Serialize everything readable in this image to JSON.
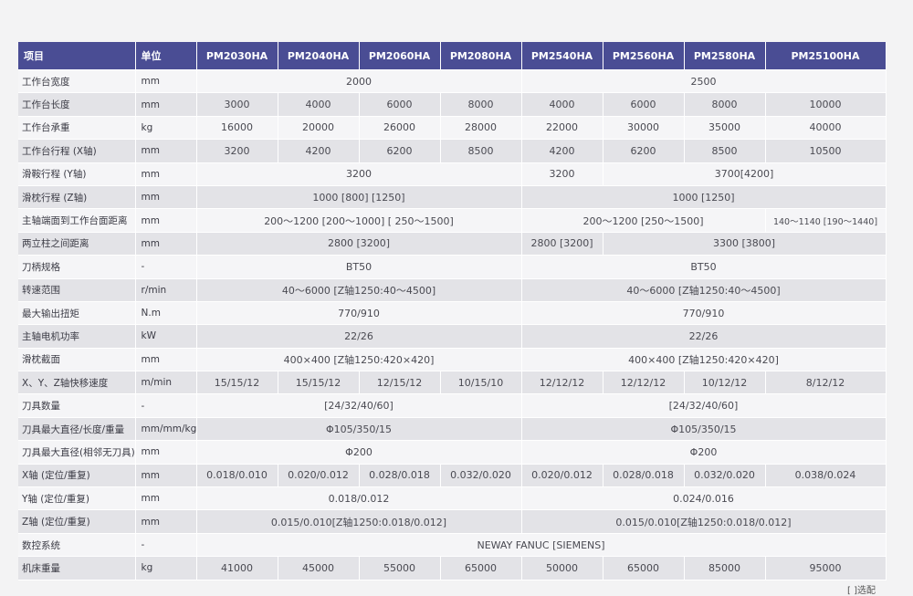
{
  "header": {
    "item": "项目",
    "unit": "单位",
    "models": [
      "PM2030HA",
      "PM2040HA",
      "PM2060HA",
      "PM2080HA",
      "PM2540HA",
      "PM2560HA",
      "PM2580HA",
      "PM25100HA"
    ]
  },
  "rows": [
    {
      "label": "工作台宽度",
      "unit": "mm",
      "cells": [
        {
          "v": "2000",
          "s": 4
        },
        {
          "v": "2500",
          "s": 4
        }
      ]
    },
    {
      "label": "工作台长度",
      "unit": "mm",
      "cells": [
        {
          "v": "3000"
        },
        {
          "v": "4000"
        },
        {
          "v": "6000"
        },
        {
          "v": "8000"
        },
        {
          "v": "4000"
        },
        {
          "v": "6000"
        },
        {
          "v": "8000"
        },
        {
          "v": "10000"
        }
      ]
    },
    {
      "label": "工作台承重",
      "unit": "kg",
      "cells": [
        {
          "v": "16000"
        },
        {
          "v": "20000"
        },
        {
          "v": "26000"
        },
        {
          "v": "28000"
        },
        {
          "v": "22000"
        },
        {
          "v": "30000"
        },
        {
          "v": "35000"
        },
        {
          "v": "40000"
        }
      ]
    },
    {
      "label": "工作台行程 (X轴)",
      "unit": "mm",
      "cells": [
        {
          "v": "3200"
        },
        {
          "v": "4200"
        },
        {
          "v": "6200"
        },
        {
          "v": "8500"
        },
        {
          "v": "4200"
        },
        {
          "v": "6200"
        },
        {
          "v": "8500"
        },
        {
          "v": "10500"
        }
      ]
    },
    {
      "label": "滑鞍行程 (Y轴)",
      "unit": "mm",
      "cells": [
        {
          "v": "3200",
          "s": 4
        },
        {
          "v": "3200"
        },
        {
          "v": "3700[4200]",
          "s": 3
        }
      ]
    },
    {
      "label": "滑枕行程 (Z轴)",
      "unit": "mm",
      "cells": [
        {
          "v": "1000 [800] [1250]",
          "s": 4
        },
        {
          "v": "1000 [1250]",
          "s": 4
        }
      ]
    },
    {
      "label": "主轴端面到工作台面距离",
      "unit": "mm",
      "cells": [
        {
          "v": "200～1200 [200～1000] [ 250～1500]",
          "s": 4
        },
        {
          "v": "200～1200 [250～1500]",
          "s": 3
        },
        {
          "v": "140～1140 [190～1440]",
          "c": "sm"
        }
      ]
    },
    {
      "label": "两立柱之间距离",
      "unit": "mm",
      "cells": [
        {
          "v": "2800 [3200]",
          "s": 4
        },
        {
          "v": "2800 [3200]"
        },
        {
          "v": "3300 [3800]",
          "s": 3
        }
      ]
    },
    {
      "label": "刀柄规格",
      "unit": "-",
      "cells": [
        {
          "v": "BT50",
          "s": 4
        },
        {
          "v": "BT50",
          "s": 4
        }
      ]
    },
    {
      "label": "转速范围",
      "unit": "r/min",
      "cells": [
        {
          "v": "40～6000 [Z轴1250:40～4500]",
          "s": 4
        },
        {
          "v": "40～6000 [Z轴1250:40～4500]",
          "s": 4
        }
      ]
    },
    {
      "label": "最大输出扭矩",
      "unit": "N.m",
      "cells": [
        {
          "v": "770/910",
          "s": 4
        },
        {
          "v": "770/910",
          "s": 4
        }
      ]
    },
    {
      "label": "主轴电机功率",
      "unit": "kW",
      "cells": [
        {
          "v": "22/26",
          "s": 4
        },
        {
          "v": "22/26",
          "s": 4
        }
      ]
    },
    {
      "label": "滑枕截面",
      "unit": "mm",
      "cells": [
        {
          "v": "400×400 [Z轴1250:420×420]",
          "s": 4
        },
        {
          "v": "400×400 [Z轴1250:420×420]",
          "s": 4
        }
      ]
    },
    {
      "label": "X、Y、Z轴快移速度",
      "unit": "m/min",
      "cells": [
        {
          "v": "15/15/12"
        },
        {
          "v": "15/15/12"
        },
        {
          "v": "12/15/12"
        },
        {
          "v": "10/15/10"
        },
        {
          "v": "12/12/12"
        },
        {
          "v": "12/12/12"
        },
        {
          "v": "10/12/12"
        },
        {
          "v": "8/12/12"
        }
      ]
    },
    {
      "label": "刀具数量",
      "unit": "-",
      "cells": [
        {
          "v": "[24/32/40/60]",
          "s": 4
        },
        {
          "v": "[24/32/40/60]",
          "s": 4
        }
      ]
    },
    {
      "label": "刀具最大直径/长度/重量",
      "unit": "mm/mm/kg",
      "cells": [
        {
          "v": "Φ105/350/15",
          "s": 4
        },
        {
          "v": "Φ105/350/15",
          "s": 4
        }
      ]
    },
    {
      "label": "刀具最大直径(相邻无刀具)",
      "unit": "mm",
      "cells": [
        {
          "v": "Φ200",
          "s": 4
        },
        {
          "v": "Φ200",
          "s": 4
        }
      ]
    },
    {
      "label": "X轴 (定位/重复)",
      "unit": "mm",
      "cells": [
        {
          "v": "0.018/0.010"
        },
        {
          "v": "0.020/0.012"
        },
        {
          "v": "0.028/0.018"
        },
        {
          "v": "0.032/0.020"
        },
        {
          "v": "0.020/0.012"
        },
        {
          "v": "0.028/0.018"
        },
        {
          "v": "0.032/0.020"
        },
        {
          "v": "0.038/0.024"
        }
      ]
    },
    {
      "label": "Y轴 (定位/重复)",
      "unit": "mm",
      "cells": [
        {
          "v": "0.018/0.012",
          "s": 4
        },
        {
          "v": "0.024/0.016",
          "s": 4
        }
      ]
    },
    {
      "label": "Z轴 (定位/重复)",
      "unit": "mm",
      "cells": [
        {
          "v": "0.015/0.010[Z轴1250:0.018/0.012]",
          "s": 4
        },
        {
          "v": "0.015/0.010[Z轴1250:0.018/0.012]",
          "s": 4
        }
      ]
    },
    {
      "label": "数控系统",
      "unit": "-",
      "cells": [
        {
          "v": "NEWAY FANUC [SIEMENS]",
          "s": 8
        }
      ]
    },
    {
      "label": "机床重量",
      "unit": "kg",
      "cells": [
        {
          "v": "41000"
        },
        {
          "v": "45000"
        },
        {
          "v": "55000"
        },
        {
          "v": "65000"
        },
        {
          "v": "50000"
        },
        {
          "v": "65000"
        },
        {
          "v": "85000"
        },
        {
          "v": "95000"
        }
      ]
    }
  ],
  "footnote": "[ ]选配"
}
